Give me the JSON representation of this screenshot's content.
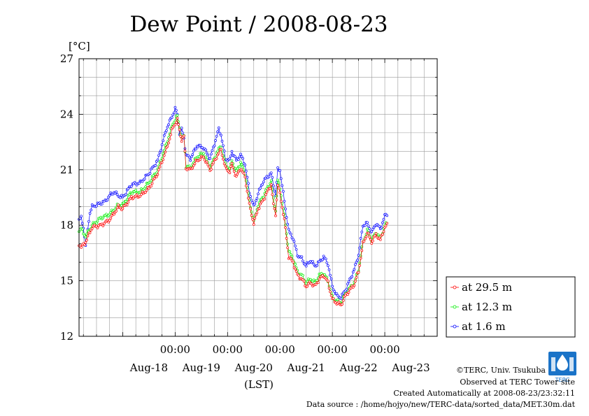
{
  "chart_data": {
    "type": "line",
    "title": "Dew Point / 2008-08-23",
    "ylabel": "[°C]",
    "xlabel": "(LST)",
    "ylim": [
      12,
      27
    ],
    "yticks": [
      12,
      15,
      18,
      21,
      24,
      27
    ],
    "xlim_hours": [
      -20,
      144
    ],
    "midnight_tick_label": "00:00",
    "midnight_ticks_hours": [
      24,
      48,
      72,
      96,
      120
    ],
    "day_labels": [
      {
        "label": "Aug-18",
        "hour": 12
      },
      {
        "label": "Aug-19",
        "hour": 36
      },
      {
        "label": "Aug-20",
        "hour": 60
      },
      {
        "label": "Aug-21",
        "hour": 84
      },
      {
        "label": "Aug-22",
        "hour": 108
      },
      {
        "label": "Aug-23",
        "hour": 132
      }
    ],
    "grid": true,
    "legend_position": "right",
    "series": [
      {
        "name": "at 29.5 m",
        "color": "#ff0000",
        "keyframes": [
          [
            -20,
            17.0
          ],
          [
            -19,
            16.8
          ],
          [
            -17,
            17.1
          ],
          [
            -14,
            17.9
          ],
          [
            -10,
            18.0
          ],
          [
            -6,
            18.3
          ],
          [
            -2,
            19.0
          ],
          [
            0,
            18.9
          ],
          [
            4,
            19.5
          ],
          [
            8,
            19.6
          ],
          [
            12,
            20.0
          ],
          [
            16,
            20.8
          ],
          [
            20,
            22.1
          ],
          [
            23,
            23.3
          ],
          [
            25,
            23.7
          ],
          [
            27,
            22.6
          ],
          [
            28,
            22.8
          ],
          [
            29,
            21.1
          ],
          [
            31,
            21.0
          ],
          [
            34,
            21.5
          ],
          [
            37,
            21.7
          ],
          [
            40,
            21.0
          ],
          [
            43,
            21.7
          ],
          [
            45,
            22.1
          ],
          [
            47,
            21.1
          ],
          [
            49,
            20.9
          ],
          [
            50,
            21.3
          ],
          [
            52,
            20.6
          ],
          [
            54,
            21.1
          ],
          [
            56,
            20.6
          ],
          [
            58,
            19.1
          ],
          [
            60,
            18.1
          ],
          [
            62,
            18.9
          ],
          [
            64,
            19.3
          ],
          [
            68,
            20.2
          ],
          [
            69,
            19.1
          ],
          [
            70,
            18.6
          ],
          [
            71,
            20.2
          ],
          [
            72,
            19.7
          ],
          [
            74,
            18.3
          ],
          [
            76,
            16.3
          ],
          [
            78,
            16.0
          ],
          [
            80,
            15.3
          ],
          [
            82,
            15.1
          ],
          [
            84,
            14.7
          ],
          [
            86,
            14.9
          ],
          [
            88,
            14.7
          ],
          [
            90,
            15.1
          ],
          [
            92,
            15.3
          ],
          [
            94,
            14.9
          ],
          [
            96,
            14.0
          ],
          [
            98,
            13.8
          ],
          [
            100,
            13.7
          ],
          [
            102,
            14.2
          ],
          [
            106,
            14.8
          ],
          [
            108,
            15.5
          ],
          [
            110,
            17.0
          ],
          [
            112,
            17.6
          ],
          [
            114,
            17.1
          ],
          [
            116,
            17.5
          ],
          [
            118,
            17.2
          ],
          [
            120,
            17.9
          ],
          [
            121,
            18.0
          ]
        ]
      },
      {
        "name": "at 12.3 m",
        "color": "#00ee00",
        "keyframes": [
          [
            -20,
            17.7
          ],
          [
            -19,
            17.8
          ],
          [
            -17,
            17.4
          ],
          [
            -14,
            18.0
          ],
          [
            -10,
            18.4
          ],
          [
            -6,
            18.6
          ],
          [
            -2,
            19.1
          ],
          [
            0,
            19.1
          ],
          [
            4,
            19.8
          ],
          [
            8,
            19.8
          ],
          [
            12,
            20.3
          ],
          [
            16,
            21.0
          ],
          [
            20,
            22.4
          ],
          [
            23,
            23.5
          ],
          [
            25,
            23.9
          ],
          [
            27,
            22.7
          ],
          [
            28,
            22.8
          ],
          [
            29,
            21.2
          ],
          [
            31,
            21.1
          ],
          [
            34,
            21.7
          ],
          [
            37,
            21.9
          ],
          [
            40,
            21.1
          ],
          [
            43,
            21.9
          ],
          [
            45,
            22.3
          ],
          [
            47,
            21.3
          ],
          [
            49,
            21.0
          ],
          [
            50,
            21.5
          ],
          [
            52,
            20.9
          ],
          [
            54,
            21.4
          ],
          [
            56,
            20.8
          ],
          [
            58,
            19.3
          ],
          [
            60,
            18.2
          ],
          [
            62,
            19.1
          ],
          [
            64,
            19.5
          ],
          [
            68,
            20.4
          ],
          [
            69,
            19.4
          ],
          [
            70,
            18.8
          ],
          [
            71,
            20.4
          ],
          [
            72,
            20.0
          ],
          [
            74,
            18.5
          ],
          [
            76,
            16.6
          ],
          [
            78,
            16.2
          ],
          [
            80,
            15.5
          ],
          [
            82,
            15.3
          ],
          [
            84,
            14.9
          ],
          [
            86,
            15.1
          ],
          [
            88,
            14.9
          ],
          [
            90,
            15.3
          ],
          [
            92,
            15.4
          ],
          [
            94,
            15.0
          ],
          [
            96,
            14.1
          ],
          [
            98,
            13.9
          ],
          [
            100,
            13.8
          ],
          [
            102,
            14.3
          ],
          [
            106,
            14.9
          ],
          [
            108,
            15.6
          ],
          [
            110,
            17.1
          ],
          [
            112,
            17.7
          ],
          [
            114,
            17.2
          ],
          [
            116,
            17.6
          ],
          [
            118,
            17.3
          ],
          [
            120,
            18.0
          ],
          [
            121,
            18.1
          ]
        ]
      },
      {
        "name": "at 1.6 m",
        "color": "#0000ff",
        "keyframes": [
          [
            -20,
            18.3
          ],
          [
            -19,
            18.4
          ],
          [
            -18,
            17.9
          ],
          [
            -17,
            16.9
          ],
          [
            -15,
            18.7
          ],
          [
            -14,
            19.0
          ],
          [
            -12,
            19.1
          ],
          [
            -10,
            19.2
          ],
          [
            -8,
            19.3
          ],
          [
            -6,
            19.6
          ],
          [
            -4,
            19.8
          ],
          [
            -2,
            19.6
          ],
          [
            0,
            19.5
          ],
          [
            4,
            20.2
          ],
          [
            8,
            20.3
          ],
          [
            12,
            20.8
          ],
          [
            16,
            21.5
          ],
          [
            20,
            23.2
          ],
          [
            23,
            24.0
          ],
          [
            24,
            24.3
          ],
          [
            25,
            24.0
          ],
          [
            26,
            23.0
          ],
          [
            27,
            23.2
          ],
          [
            28,
            22.7
          ],
          [
            29,
            21.8
          ],
          [
            31,
            21.6
          ],
          [
            34,
            22.3
          ],
          [
            37,
            22.2
          ],
          [
            40,
            21.6
          ],
          [
            43,
            22.8
          ],
          [
            44,
            23.2
          ],
          [
            45,
            22.9
          ],
          [
            47,
            21.6
          ],
          [
            49,
            21.5
          ],
          [
            50,
            22.0
          ],
          [
            52,
            21.5
          ],
          [
            54,
            21.8
          ],
          [
            56,
            21.3
          ],
          [
            58,
            19.8
          ],
          [
            60,
            19.0
          ],
          [
            62,
            19.7
          ],
          [
            64,
            20.3
          ],
          [
            66,
            20.6
          ],
          [
            68,
            20.8
          ],
          [
            69,
            20.2
          ],
          [
            70,
            19.6
          ],
          [
            71,
            21.0
          ],
          [
            72,
            21.0
          ],
          [
            74,
            19.3
          ],
          [
            76,
            17.7
          ],
          [
            78,
            17.3
          ],
          [
            80,
            16.4
          ],
          [
            82,
            16.2
          ],
          [
            84,
            15.8
          ],
          [
            86,
            16.1
          ],
          [
            88,
            15.8
          ],
          [
            90,
            16.0
          ],
          [
            92,
            16.3
          ],
          [
            94,
            15.9
          ],
          [
            96,
            14.7
          ],
          [
            98,
            14.2
          ],
          [
            100,
            14.1
          ],
          [
            102,
            14.5
          ],
          [
            106,
            15.6
          ],
          [
            108,
            16.4
          ],
          [
            110,
            18.0
          ],
          [
            112,
            18.1
          ],
          [
            114,
            17.6
          ],
          [
            116,
            18.1
          ],
          [
            118,
            17.8
          ],
          [
            120,
            18.5
          ],
          [
            121,
            18.6
          ]
        ]
      }
    ]
  },
  "credits": {
    "copyright": "©TERC, Univ. Tsukuba",
    "observed": "Observed at TERC Tower site",
    "created": "Created Automatically at 2008-08-23/23:32:11",
    "source": "Data source : /home/hojyo/new/TERC-data/sorted_data/MET.30m.dat",
    "logo_text": "TERC"
  }
}
